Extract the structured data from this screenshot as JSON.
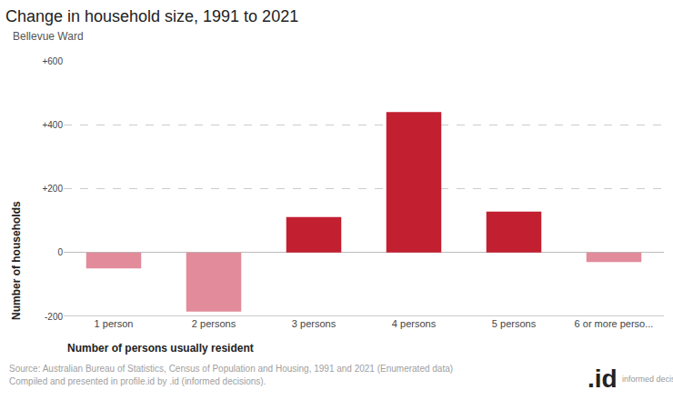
{
  "chart_data": {
    "type": "bar",
    "title": "Change in household size, 1991 to 2021",
    "subtitle": "Bellevue Ward",
    "x_label": "Number of persons usually resident",
    "y_label": "Number of households",
    "categories": [
      "1 person",
      "2 persons",
      "3 persons",
      "4 persons",
      "5 persons",
      "6 or more perso..."
    ],
    "values": [
      -50,
      -185,
      111,
      440,
      128,
      -30
    ],
    "colors": [
      "#e28b9b",
      "#e28b9b",
      "#c21f30",
      "#c21f30",
      "#c21f30",
      "#e28b9b"
    ],
    "ylim": [
      -200,
      600
    ],
    "yticks": [
      -200,
      0,
      {
        "value": 200,
        "label": "+200"
      },
      {
        "value": 400,
        "label": "+400"
      },
      {
        "value": 600,
        "label": "+600"
      }
    ],
    "grid": true,
    "annotations": [
      "Source: Australian Bureau of Statistics, Census of Population and Housing, 1991 and 2021 (Enumerated data)",
      "Compiled and presented in profile.id by .id (informed decisions).",
      ".id",
      "informed decisions"
    ]
  }
}
